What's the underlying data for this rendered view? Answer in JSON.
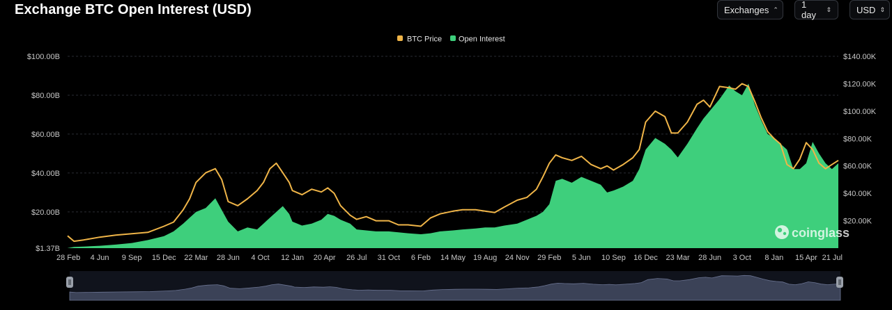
{
  "header": {
    "title": "Exchange BTC Open Interest (USD)",
    "controls": [
      {
        "label": "Exchanges",
        "icon": "chevron-updown-icon"
      },
      {
        "label": "1 day",
        "icon": "chevron-updown-icon"
      },
      {
        "label": "USD",
        "icon": "chevron-updown-icon"
      }
    ]
  },
  "watermark": {
    "text": "coinglass",
    "icon": "coinglass-logo-icon"
  },
  "colors": {
    "background": "#000000",
    "open_interest": "#3ecf7c",
    "btc_price": "#f0b548",
    "gridline": "#2a2d33",
    "navigator": "#3b4257"
  },
  "chart_data": {
    "type": "area",
    "legend": {
      "position": "top-center",
      "items": [
        {
          "name": "BTC Price",
          "color": "#f0b548"
        },
        {
          "name": "Open Interest",
          "color": "#3ecf7c"
        }
      ]
    },
    "grid": true,
    "x_tick_labels": [
      "28 Feb",
      "4 Jun",
      "9 Sep",
      "15 Dec",
      "22 Mar",
      "28 Jun",
      "4 Oct",
      "12 Jan",
      "20 Apr",
      "26 Jul",
      "31 Oct",
      "6 Feb",
      "14 May",
      "19 Aug",
      "24 Nov",
      "29 Feb",
      "5 Jun",
      "10 Sep",
      "16 Dec",
      "23 Mar",
      "28 Jun",
      "3 Oct",
      "8 Jan",
      "15 Apr",
      "21 Jul"
    ],
    "y_left": {
      "tick_labels": [
        "$1.37B",
        "$20.00B",
        "$40.00B",
        "$60.00B",
        "$80.00B",
        "$100.00B"
      ],
      "tick_values": [
        1.37,
        20,
        40,
        60,
        80,
        100
      ],
      "range": [
        1.37,
        100
      ]
    },
    "y_right": {
      "tick_labels": [
        "$20.00K",
        "$40.00K",
        "$60.00K",
        "$80.00K",
        "$100.00K",
        "$120.00K",
        "$140.00K"
      ],
      "tick_values": [
        20,
        40,
        60,
        80,
        100,
        120,
        140
      ],
      "range": [
        0,
        140
      ]
    },
    "x_index_range": [
      0,
      24
    ],
    "series": [
      {
        "name": "Open Interest",
        "axis": "left",
        "unit": "B USD",
        "points": [
          [
            0,
            1.4
          ],
          [
            0.2,
            2.0
          ],
          [
            0.5,
            2.2
          ],
          [
            1,
            2.6
          ],
          [
            1.5,
            3.2
          ],
          [
            2,
            4.0
          ],
          [
            2.5,
            5.5
          ],
          [
            3,
            7.5
          ],
          [
            3.3,
            10
          ],
          [
            3.6,
            14
          ],
          [
            3.8,
            17
          ],
          [
            4,
            20
          ],
          [
            4.3,
            22
          ],
          [
            4.6,
            27
          ],
          [
            4.8,
            21
          ],
          [
            5,
            15
          ],
          [
            5.3,
            10
          ],
          [
            5.6,
            12
          ],
          [
            5.9,
            11
          ],
          [
            6.1,
            14
          ],
          [
            6.3,
            17
          ],
          [
            6.5,
            20
          ],
          [
            6.7,
            23
          ],
          [
            6.9,
            19
          ],
          [
            7,
            15
          ],
          [
            7.3,
            13
          ],
          [
            7.6,
            14
          ],
          [
            7.9,
            16
          ],
          [
            8.1,
            19
          ],
          [
            8.3,
            18
          ],
          [
            8.5,
            16
          ],
          [
            8.8,
            14
          ],
          [
            9,
            11
          ],
          [
            9.3,
            10.5
          ],
          [
            9.6,
            10
          ],
          [
            10,
            10
          ],
          [
            10.3,
            9.5
          ],
          [
            10.6,
            9
          ],
          [
            11,
            8.5
          ],
          [
            11.3,
            9
          ],
          [
            11.6,
            10
          ],
          [
            12,
            10.5
          ],
          [
            12.3,
            11
          ],
          [
            12.7,
            11.5
          ],
          [
            13,
            12
          ],
          [
            13.3,
            12
          ],
          [
            13.6,
            13
          ],
          [
            14,
            14
          ],
          [
            14.3,
            16
          ],
          [
            14.6,
            18
          ],
          [
            14.8,
            20
          ],
          [
            15,
            24
          ],
          [
            15.2,
            36
          ],
          [
            15.4,
            37
          ],
          [
            15.7,
            35
          ],
          [
            16,
            38
          ],
          [
            16.3,
            36
          ],
          [
            16.6,
            34
          ],
          [
            16.8,
            30
          ],
          [
            17,
            31
          ],
          [
            17.3,
            33
          ],
          [
            17.6,
            36
          ],
          [
            17.8,
            42
          ],
          [
            18,
            52
          ],
          [
            18.3,
            58
          ],
          [
            18.6,
            55
          ],
          [
            18.8,
            52
          ],
          [
            19,
            48
          ],
          [
            19.3,
            55
          ],
          [
            19.6,
            63
          ],
          [
            19.8,
            68
          ],
          [
            20,
            72
          ],
          [
            20.3,
            78
          ],
          [
            20.6,
            85
          ],
          [
            20.8,
            82
          ],
          [
            21,
            80
          ],
          [
            21.2,
            86
          ],
          [
            21.4,
            75
          ],
          [
            21.6,
            67
          ],
          [
            21.8,
            60
          ],
          [
            22,
            58
          ],
          [
            22.2,
            55
          ],
          [
            22.4,
            52
          ],
          [
            22.6,
            42
          ],
          [
            22.8,
            42
          ],
          [
            23,
            45
          ],
          [
            23.2,
            56
          ],
          [
            23.4,
            50
          ],
          [
            23.6,
            45
          ],
          [
            23.8,
            42
          ],
          [
            24,
            45
          ]
        ]
      },
      {
        "name": "BTC Price",
        "axis": "right",
        "unit": "K USD",
        "points": [
          [
            0,
            9
          ],
          [
            0.2,
            5
          ],
          [
            0.5,
            6
          ],
          [
            1,
            8
          ],
          [
            1.5,
            9.5
          ],
          [
            2,
            10.5
          ],
          [
            2.5,
            11.5
          ],
          [
            3,
            16
          ],
          [
            3.3,
            19
          ],
          [
            3.6,
            28
          ],
          [
            3.8,
            36
          ],
          [
            4,
            48
          ],
          [
            4.3,
            55
          ],
          [
            4.6,
            58
          ],
          [
            4.8,
            50
          ],
          [
            5,
            34
          ],
          [
            5.3,
            31
          ],
          [
            5.6,
            36
          ],
          [
            5.9,
            42
          ],
          [
            6.1,
            48
          ],
          [
            6.3,
            58
          ],
          [
            6.5,
            62
          ],
          [
            6.7,
            55
          ],
          [
            6.9,
            48
          ],
          [
            7,
            42
          ],
          [
            7.3,
            39
          ],
          [
            7.6,
            43
          ],
          [
            7.9,
            41
          ],
          [
            8.1,
            44
          ],
          [
            8.3,
            40
          ],
          [
            8.5,
            31
          ],
          [
            8.8,
            24
          ],
          [
            9,
            21
          ],
          [
            9.3,
            23
          ],
          [
            9.6,
            20
          ],
          [
            10,
            20
          ],
          [
            10.3,
            17
          ],
          [
            10.6,
            17
          ],
          [
            11,
            16
          ],
          [
            11.3,
            22
          ],
          [
            11.6,
            25
          ],
          [
            12,
            27
          ],
          [
            12.3,
            28
          ],
          [
            12.7,
            28
          ],
          [
            13,
            27
          ],
          [
            13.3,
            26
          ],
          [
            13.6,
            30
          ],
          [
            14,
            35
          ],
          [
            14.3,
            37
          ],
          [
            14.6,
            43
          ],
          [
            14.8,
            52
          ],
          [
            15,
            62
          ],
          [
            15.2,
            68
          ],
          [
            15.4,
            66
          ],
          [
            15.7,
            64
          ],
          [
            16,
            67
          ],
          [
            16.3,
            61
          ],
          [
            16.6,
            58
          ],
          [
            16.8,
            60
          ],
          [
            17,
            57
          ],
          [
            17.3,
            61
          ],
          [
            17.6,
            66
          ],
          [
            17.8,
            72
          ],
          [
            18,
            92
          ],
          [
            18.3,
            100
          ],
          [
            18.6,
            96
          ],
          [
            18.8,
            84
          ],
          [
            19,
            84
          ],
          [
            19.3,
            92
          ],
          [
            19.6,
            105
          ],
          [
            19.8,
            108
          ],
          [
            20,
            103
          ],
          [
            20.3,
            118
          ],
          [
            20.6,
            117
          ],
          [
            20.8,
            116
          ],
          [
            21,
            120
          ],
          [
            21.2,
            118
          ],
          [
            21.4,
            107
          ],
          [
            21.6,
            95
          ],
          [
            21.8,
            85
          ],
          [
            22,
            80
          ],
          [
            22.2,
            76
          ],
          [
            22.4,
            61
          ],
          [
            22.6,
            58
          ],
          [
            22.8,
            65
          ],
          [
            23,
            77
          ],
          [
            23.2,
            72
          ],
          [
            23.4,
            62
          ],
          [
            23.6,
            58
          ],
          [
            23.8,
            61
          ],
          [
            24,
            64
          ]
        ]
      }
    ]
  }
}
